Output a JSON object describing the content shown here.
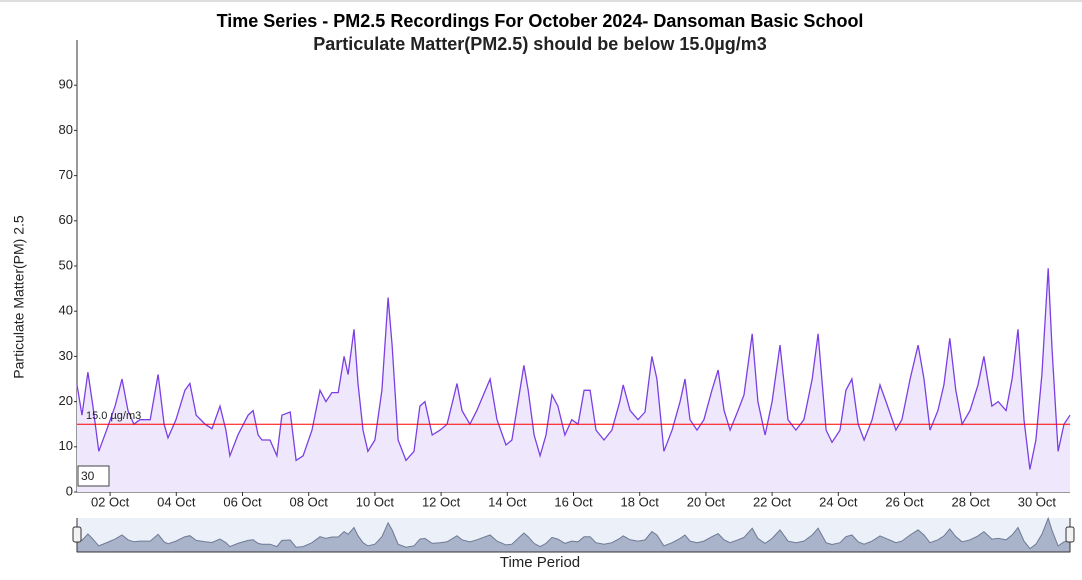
{
  "chart_data": {
    "type": "line",
    "title": "Time Series - PM2.5 Recordings For October 2024- Dansoman Basic School",
    "subtitle": "Particulate Matter(PM2.5) should be below 15.0µg/m3",
    "subtitle_color": "#ff0000",
    "y_label": "Particulate Matter(PM) 2.5",
    "x_label": "Time Period",
    "range_input": "30",
    "color": "#7b3fe4",
    "fill": "#efe8fd",
    "x": [
      1.0,
      1.15,
      1.33,
      1.48,
      1.66,
      1.91,
      2.15,
      2.36,
      2.54,
      2.72,
      2.9,
      3.21,
      3.45,
      3.63,
      3.75,
      3.99,
      4.26,
      4.41,
      4.6,
      4.87,
      5.08,
      5.32,
      5.5,
      5.62,
      5.86,
      6.17,
      6.32,
      6.47,
      6.59,
      6.83,
      7.04,
      7.19,
      7.44,
      7.62,
      7.83,
      8.1,
      8.34,
      8.52,
      8.7,
      8.89,
      9.07,
      9.19,
      9.37,
      9.49,
      9.64,
      9.79,
      10.0,
      10.21,
      10.4,
      10.52,
      10.7,
      10.94,
      11.18,
      11.36,
      11.51,
      11.73,
      11.97,
      12.18,
      12.48,
      12.63,
      12.87,
      13.08,
      13.48,
      13.69,
      13.96,
      14.14,
      14.38,
      14.5,
      14.63,
      14.81,
      14.99,
      15.17,
      15.35,
      15.53,
      15.74,
      15.95,
      16.14,
      16.32,
      16.5,
      16.68,
      16.92,
      17.16,
      17.4,
      17.5,
      17.71,
      17.95,
      18.16,
      18.37,
      18.52,
      18.73,
      18.98,
      19.22,
      19.37,
      19.52,
      19.73,
      19.94,
      20.18,
      20.37,
      20.55,
      20.73,
      20.97,
      21.15,
      21.4,
      21.57,
      21.79,
      22.0,
      22.24,
      22.48,
      22.72,
      22.96,
      23.21,
      23.39,
      23.63,
      23.81,
      24.05,
      24.23,
      24.41,
      24.6,
      24.78,
      25.02,
      25.26,
      25.44,
      25.74,
      25.92,
      26.17,
      26.41,
      26.59,
      26.77,
      27.01,
      27.19,
      27.37,
      27.55,
      27.74,
      27.98,
      28.22,
      28.4,
      28.64,
      28.83,
      29.07,
      29.25,
      29.43,
      29.61,
      29.79,
      29.97,
      30.15,
      30.34,
      30.46,
      30.64,
      30.82,
      31.0
    ],
    "values": [
      23.7,
      17,
      26.5,
      19,
      9,
      14,
      19,
      25,
      18,
      15,
      16,
      16,
      26,
      15,
      12,
      16,
      22.5,
      24,
      17,
      15,
      14,
      19,
      13.7,
      8,
      12.6,
      17,
      18,
      12.6,
      11.5,
      11.5,
      8,
      17,
      17.7,
      7,
      8,
      13.7,
      22.5,
      20,
      22,
      22,
      30,
      26,
      36,
      24,
      13.7,
      9,
      11.5,
      22.5,
      43,
      32.5,
      11.5,
      7,
      9,
      19,
      20,
      12.6,
      13.7,
      15,
      24,
      18,
      15,
      18,
      25,
      16,
      10.4,
      11.5,
      22.5,
      28,
      22.5,
      12.6,
      8,
      12.6,
      21.5,
      19,
      12.6,
      16,
      15,
      22.5,
      22.5,
      13.7,
      11.5,
      13.7,
      20,
      23.7,
      18,
      16,
      17.7,
      30,
      25,
      9,
      13.7,
      20,
      25,
      16,
      13.7,
      16,
      22.5,
      27,
      18,
      13.7,
      18,
      21.5,
      35,
      20,
      12.6,
      20,
      32.5,
      16,
      13.7,
      16,
      25,
      35,
      13.7,
      11,
      13.7,
      22.5,
      25,
      15,
      11.5,
      16,
      23.7,
      20,
      13.7,
      16,
      25,
      32.5,
      25,
      13.7,
      18,
      23.7,
      34,
      22.5,
      15,
      18,
      23.7,
      30,
      19,
      20,
      18,
      25,
      36,
      16,
      5,
      11.5,
      26,
      49.5,
      31.4,
      9,
      15,
      17
    ],
    "xlim": [
      1,
      31
    ],
    "ylim": [
      0,
      100
    ],
    "yticks": [
      0,
      10,
      20,
      30,
      40,
      50,
      60,
      70,
      80,
      90
    ],
    "xticks": [
      {
        "value": 2,
        "label": "02 Oct"
      },
      {
        "value": 4,
        "label": "04 Oct"
      },
      {
        "value": 6,
        "label": "06 Oct"
      },
      {
        "value": 8,
        "label": "08 Oct"
      },
      {
        "value": 10,
        "label": "10 Oct"
      },
      {
        "value": 12,
        "label": "12 Oct"
      },
      {
        "value": 14,
        "label": "14 Oct"
      },
      {
        "value": 16,
        "label": "16 Oct"
      },
      {
        "value": 18,
        "label": "18 Oct"
      },
      {
        "value": 20,
        "label": "20 Oct"
      },
      {
        "value": 22,
        "label": "22 Oct"
      },
      {
        "value": 24,
        "label": "24 Oct"
      },
      {
        "value": 26,
        "label": "26 Oct"
      },
      {
        "value": 28,
        "label": "28 Oct"
      },
      {
        "value": 30,
        "label": "30 Oct"
      }
    ],
    "threshold": {
      "value": 15,
      "label": "15.0 µg/m3",
      "color": "#ff0000"
    }
  }
}
